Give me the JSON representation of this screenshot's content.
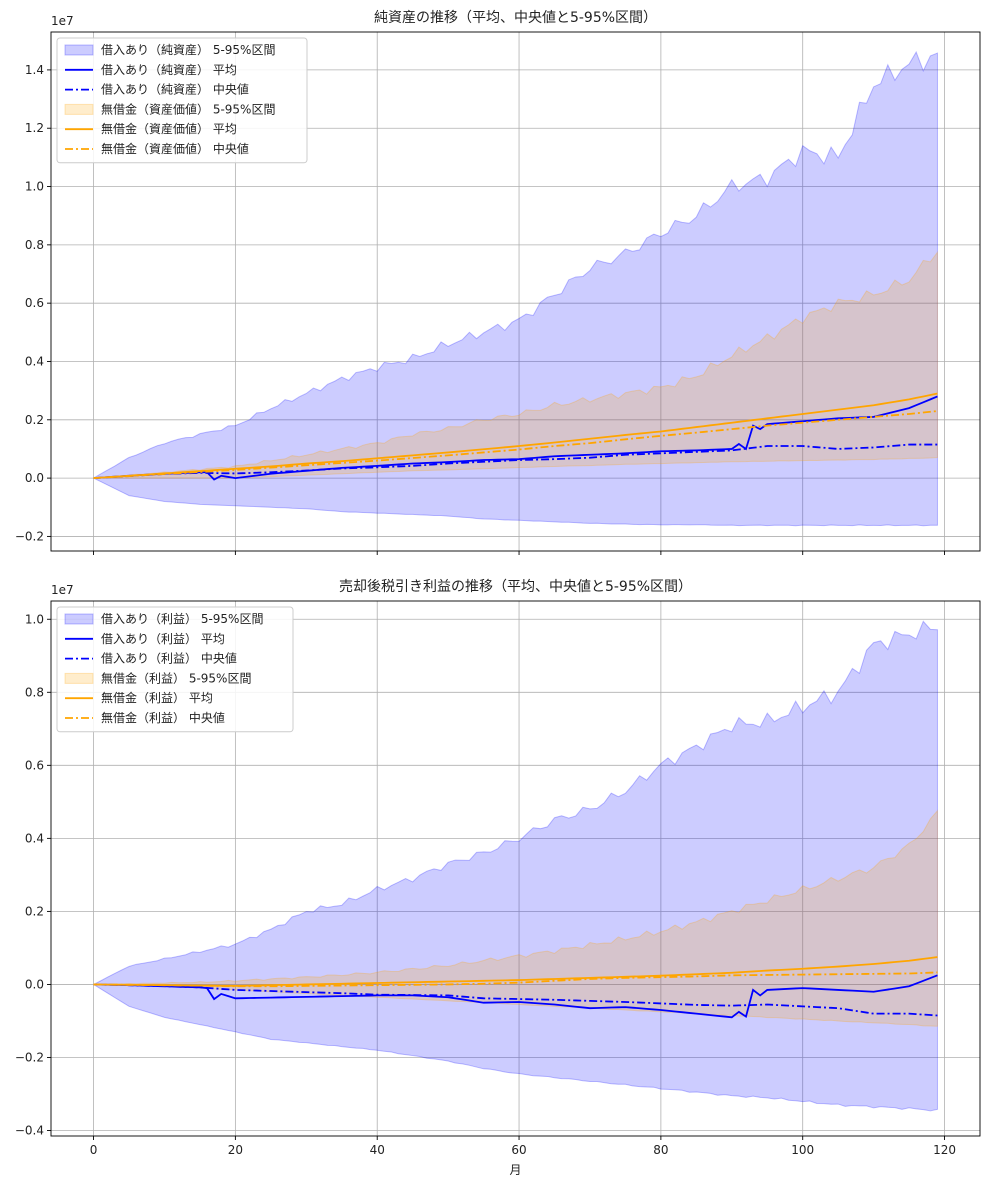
{
  "chart_data": [
    {
      "type": "area",
      "title": "純資産の推移（平均、中央値と5-95%区間）",
      "xlabel": "",
      "ylabel": "",
      "y_scale_label": "1e7",
      "xlim": [
        -6,
        125
      ],
      "ylim": [
        -2500000,
        15300000
      ],
      "x_ticks": [
        0,
        20,
        40,
        60,
        80,
        100,
        120
      ],
      "x_tick_labels": [
        "",
        "",
        "",
        "",
        "",
        "",
        ""
      ],
      "y_ticks": [
        -2000000,
        0,
        2000000,
        4000000,
        6000000,
        8000000,
        10000000,
        12000000,
        14000000
      ],
      "y_tick_labels": [
        "−0.2",
        "0.0",
        "0.2",
        "0.4",
        "0.6",
        "0.8",
        "1.0",
        "1.2",
        "1.4"
      ],
      "grid": true,
      "legend_position": "top-left",
      "x_knots": [
        0,
        5,
        10,
        15,
        20,
        25,
        30,
        35,
        40,
        45,
        50,
        55,
        60,
        65,
        70,
        75,
        80,
        85,
        90,
        95,
        100,
        105,
        110,
        115,
        119
      ],
      "series": [
        {
          "name": "借入あり（純資産） 5-95%区間",
          "kind": "band",
          "color": "#0000ff",
          "upper": [
            0,
            700000,
            1200000,
            1500000,
            1800000,
            2400000,
            2900000,
            3400000,
            3800000,
            4100000,
            4600000,
            5000000,
            5400000,
            6300000,
            7200000,
            7700000,
            8400000,
            9000000,
            10000000,
            10300000,
            11200000,
            11000000,
            13500000,
            14200000,
            14500000
          ],
          "lower": [
            0,
            -600000,
            -800000,
            -900000,
            -950000,
            -1000000,
            -1050000,
            -1150000,
            -1200000,
            -1250000,
            -1300000,
            -1400000,
            -1450000,
            -1500000,
            -1550000,
            -1580000,
            -1600000,
            -1600000,
            -1620000,
            -1620000,
            -1620000,
            -1620000,
            -1620000,
            -1620000,
            -1620000
          ]
        },
        {
          "name": "借入あり（純資産） 平均",
          "kind": "line",
          "dash": "",
          "color": "#0000ff",
          "values": [
            0,
            80000,
            150000,
            200000,
            0,
            150000,
            250000,
            350000,
            420000,
            500000,
            550000,
            620000,
            650000,
            750000,
            800000,
            850000,
            920000,
            950000,
            1000000,
            1850000,
            1950000,
            2050000,
            2100000,
            2400000,
            2800000
          ],
          "jumps": [
            [
              17,
              200000,
              -50000
            ],
            [
              93,
              1000000,
              1800000
            ]
          ]
        },
        {
          "name": "借入あり（純資産） 中央値",
          "kind": "line",
          "dash": "8,3,2,3",
          "color": "#0000ff",
          "values": [
            0,
            70000,
            140000,
            180000,
            160000,
            200000,
            260000,
            330000,
            370000,
            420000,
            500000,
            560000,
            620000,
            650000,
            700000,
            800000,
            850000,
            900000,
            950000,
            1100000,
            1100000,
            1000000,
            1050000,
            1150000,
            1150000
          ]
        },
        {
          "name": "無借金（資産価値） 5-95%区間",
          "kind": "band",
          "color": "#ffa500",
          "upper": [
            0,
            100000,
            200000,
            300000,
            400000,
            600000,
            800000,
            1000000,
            1200000,
            1500000,
            1700000,
            2000000,
            2200000,
            2500000,
            2700000,
            2900000,
            3100000,
            3500000,
            4200000,
            4800000,
            5500000,
            6000000,
            6300000,
            6800000,
            7800000
          ],
          "lower": [
            0,
            0,
            0,
            0,
            0,
            50000,
            100000,
            150000,
            200000,
            250000,
            280000,
            320000,
            360000,
            400000,
            430000,
            470000,
            500000,
            530000,
            560000,
            580000,
            600000,
            620000,
            640000,
            670000,
            700000
          ]
        },
        {
          "name": "無借金（資産価値） 平均",
          "kind": "line",
          "dash": "",
          "color": "#ffa500",
          "values": [
            0,
            80000,
            160000,
            240000,
            320000,
            400000,
            500000,
            580000,
            680000,
            780000,
            880000,
            990000,
            1100000,
            1220000,
            1350000,
            1480000,
            1600000,
            1750000,
            1900000,
            2050000,
            2200000,
            2350000,
            2500000,
            2700000,
            2900000
          ]
        },
        {
          "name": "無借金（資産価値） 中央値",
          "kind": "line",
          "dash": "8,3,2,3",
          "color": "#ffa500",
          "values": [
            0,
            70000,
            140000,
            210000,
            280000,
            360000,
            440000,
            520000,
            600000,
            690000,
            780000,
            880000,
            980000,
            1100000,
            1200000,
            1330000,
            1450000,
            1560000,
            1680000,
            1800000,
            1900000,
            2000000,
            2100000,
            2200000,
            2300000
          ]
        }
      ]
    },
    {
      "type": "area",
      "title": "売却後税引き利益の推移（平均、中央値と5-95%区間）",
      "xlabel": "月",
      "ylabel": "",
      "y_scale_label": "1e7",
      "xlim": [
        -6,
        125
      ],
      "ylim": [
        -4150000,
        10500000
      ],
      "x_ticks": [
        0,
        20,
        40,
        60,
        80,
        100,
        120
      ],
      "x_tick_labels": [
        "0",
        "20",
        "40",
        "60",
        "80",
        "100",
        "120"
      ],
      "y_ticks": [
        -4000000,
        -2000000,
        0,
        2000000,
        4000000,
        6000000,
        8000000,
        10000000
      ],
      "y_tick_labels": [
        "−0.4",
        "−0.2",
        "0.0",
        "0.2",
        "0.4",
        "0.6",
        "0.8",
        "1.0"
      ],
      "grid": true,
      "legend_position": "top-left",
      "x_knots": [
        0,
        5,
        10,
        15,
        20,
        25,
        30,
        35,
        40,
        45,
        50,
        55,
        60,
        65,
        70,
        75,
        80,
        85,
        90,
        95,
        100,
        105,
        110,
        115,
        119
      ],
      "series": [
        {
          "name": "借入あり（利益） 5-95%区間",
          "kind": "band",
          "color": "#0000ff",
          "upper": [
            0,
            500000,
            700000,
            900000,
            1100000,
            1500000,
            2000000,
            2200000,
            2600000,
            2900000,
            3300000,
            3600000,
            4000000,
            4500000,
            4800000,
            5300000,
            6000000,
            6500000,
            7100000,
            7200000,
            7600000,
            8000000,
            9300000,
            9600000,
            9800000
          ],
          "lower": [
            0,
            -600000,
            -900000,
            -1100000,
            -1300000,
            -1500000,
            -1600000,
            -1700000,
            -1800000,
            -1950000,
            -2100000,
            -2300000,
            -2450000,
            -2550000,
            -2650000,
            -2750000,
            -2850000,
            -2950000,
            -3050000,
            -3100000,
            -3200000,
            -3300000,
            -3350000,
            -3400000,
            -3450000
          ]
        },
        {
          "name": "借入あり（利益） 平均",
          "kind": "line",
          "dash": "",
          "color": "#0000ff",
          "values": [
            0,
            -20000,
            -50000,
            -80000,
            -380000,
            -360000,
            -340000,
            -320000,
            -300000,
            -300000,
            -350000,
            -500000,
            -480000,
            -550000,
            -650000,
            -620000,
            -700000,
            -800000,
            -900000,
            -150000,
            -100000,
            -150000,
            -200000,
            -50000,
            250000
          ],
          "jumps": [
            [
              17,
              -100000,
              -400000
            ],
            [
              93,
              -880000,
              -150000
            ]
          ]
        },
        {
          "name": "借入あり（利益） 中央値",
          "kind": "line",
          "dash": "8,3,2,3",
          "color": "#0000ff",
          "values": [
            0,
            -20000,
            -50000,
            -80000,
            -150000,
            -180000,
            -210000,
            -240000,
            -280000,
            -290000,
            -300000,
            -380000,
            -400000,
            -420000,
            -450000,
            -480000,
            -520000,
            -560000,
            -580000,
            -550000,
            -600000,
            -650000,
            -800000,
            -800000,
            -850000
          ]
        },
        {
          "name": "無借金（利益） 5-95%区間",
          "kind": "band",
          "color": "#ffa500",
          "upper": [
            0,
            20000,
            40000,
            60000,
            100000,
            150000,
            200000,
            260000,
            330000,
            420000,
            520000,
            650000,
            780000,
            920000,
            1080000,
            1250000,
            1450000,
            1700000,
            2000000,
            2300000,
            2600000,
            2900000,
            3200000,
            3800000,
            4700000
          ],
          "lower": [
            0,
            -20000,
            -50000,
            -100000,
            -150000,
            -200000,
            -250000,
            -300000,
            -350000,
            -400000,
            -450000,
            -500000,
            -550000,
            -600000,
            -650000,
            -700000,
            -750000,
            -800000,
            -850000,
            -900000,
            -950000,
            -1000000,
            -1050000,
            -1100000,
            -1150000
          ]
        },
        {
          "name": "無借金（利益） 平均",
          "kind": "line",
          "dash": "",
          "color": "#ffa500",
          "values": [
            0,
            -10000,
            -20000,
            -30000,
            -40000,
            -20000,
            0,
            20000,
            40000,
            60000,
            80000,
            100000,
            120000,
            150000,
            180000,
            210000,
            240000,
            280000,
            320000,
            380000,
            430000,
            490000,
            560000,
            650000,
            750000
          ]
        },
        {
          "name": "無借金（利益） 中央値",
          "kind": "line",
          "dash": "8,3,2,3",
          "color": "#ffa500",
          "values": [
            0,
            -10000,
            -20000,
            -30000,
            -50000,
            -50000,
            -40000,
            -30000,
            -20000,
            -10000,
            0,
            20000,
            50000,
            100000,
            150000,
            180000,
            200000,
            220000,
            250000,
            260000,
            270000,
            280000,
            290000,
            300000,
            330000
          ]
        }
      ]
    }
  ]
}
